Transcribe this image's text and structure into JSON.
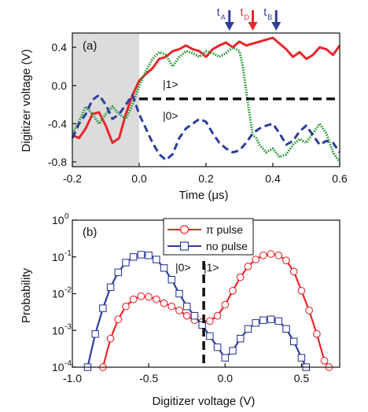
{
  "colors": {
    "red": "#e8262b",
    "blue": "#2e3e9a",
    "green": "#2e9a3a",
    "shade": "#dcdcdc",
    "black": "#111111"
  },
  "chart_data": [
    {
      "type": "line",
      "panel_label": "(a)",
      "xlabel": "Time (μs)",
      "ylabel": "Digitizer voltage (V)",
      "xlim": [
        -0.2,
        0.6
      ],
      "ylim": [
        -0.85,
        0.55
      ],
      "xticks": [
        -0.2,
        0.0,
        0.2,
        0.4,
        0.6
      ],
      "xticklabels": [
        "-0.2",
        "0.0",
        "0.2",
        "0.4",
        "0.6"
      ],
      "yticks": [
        -0.8,
        -0.4,
        0.0,
        0.4
      ],
      "yticklabels": [
        "-0.8",
        "-0.4",
        "0.0",
        "0.4"
      ],
      "shaded_region": [
        -0.2,
        0.0
      ],
      "threshold": -0.14,
      "state_labels": {
        "upper": "|1>",
        "lower": "|0>"
      },
      "markers": [
        {
          "label": "t",
          "sub": "A",
          "x": 0.27,
          "color": "blue"
        },
        {
          "label": "t",
          "sub": "D",
          "x": 0.34,
          "color": "red"
        },
        {
          "label": "t",
          "sub": "B",
          "x": 0.41,
          "color": "blue"
        }
      ],
      "series": [
        {
          "style": "solid",
          "color": "red",
          "x": [
            -0.2,
            -0.18,
            -0.16,
            -0.14,
            -0.12,
            -0.1,
            -0.08,
            -0.06,
            -0.04,
            -0.02,
            0.0,
            0.02,
            0.04,
            0.06,
            0.08,
            0.1,
            0.12,
            0.14,
            0.16,
            0.18,
            0.2,
            0.22,
            0.24,
            0.26,
            0.28,
            0.3,
            0.32,
            0.34,
            0.36,
            0.38,
            0.4,
            0.42,
            0.44,
            0.46,
            0.48,
            0.5,
            0.52,
            0.54,
            0.56,
            0.58,
            0.6
          ],
          "y": [
            -0.52,
            -0.55,
            -0.45,
            -0.3,
            -0.28,
            -0.42,
            -0.6,
            -0.55,
            -0.3,
            -0.1,
            0.05,
            0.12,
            0.18,
            0.28,
            0.3,
            0.36,
            0.38,
            0.42,
            0.38,
            0.36,
            0.3,
            0.38,
            0.42,
            0.45,
            0.4,
            0.46,
            0.42,
            0.44,
            0.46,
            0.48,
            0.5,
            0.44,
            0.38,
            0.3,
            0.35,
            0.28,
            0.32,
            0.4,
            0.38,
            0.32,
            0.42
          ]
        },
        {
          "style": "dotted",
          "color": "green",
          "x": [
            -0.2,
            -0.18,
            -0.16,
            -0.14,
            -0.12,
            -0.1,
            -0.08,
            -0.06,
            -0.04,
            -0.02,
            0.0,
            0.02,
            0.04,
            0.06,
            0.08,
            0.1,
            0.12,
            0.14,
            0.16,
            0.18,
            0.2,
            0.22,
            0.24,
            0.26,
            0.28,
            0.3,
            0.31,
            0.32,
            0.33,
            0.34,
            0.35,
            0.36,
            0.38,
            0.4,
            0.42,
            0.44,
            0.46,
            0.48,
            0.5,
            0.52,
            0.54,
            0.56,
            0.58,
            0.6
          ],
          "y": [
            -0.5,
            -0.38,
            -0.22,
            -0.3,
            -0.4,
            -0.3,
            -0.22,
            -0.3,
            -0.35,
            -0.2,
            0.0,
            0.15,
            0.28,
            0.35,
            0.32,
            0.2,
            0.3,
            0.36,
            0.34,
            0.3,
            0.36,
            0.34,
            0.3,
            0.34,
            0.4,
            0.36,
            0.2,
            -0.05,
            -0.3,
            -0.52,
            -0.55,
            -0.62,
            -0.7,
            -0.66,
            -0.75,
            -0.72,
            -0.62,
            -0.56,
            -0.6,
            -0.5,
            -0.4,
            -0.5,
            -0.7,
            -0.8
          ]
        },
        {
          "style": "dashed",
          "color": "blue",
          "x": [
            -0.2,
            -0.18,
            -0.16,
            -0.14,
            -0.12,
            -0.1,
            -0.08,
            -0.06,
            -0.04,
            -0.02,
            0.0,
            0.02,
            0.04,
            0.06,
            0.08,
            0.1,
            0.12,
            0.14,
            0.16,
            0.18,
            0.2,
            0.22,
            0.24,
            0.26,
            0.28,
            0.3,
            0.32,
            0.34,
            0.36,
            0.38,
            0.4,
            0.42,
            0.44,
            0.46,
            0.48,
            0.5,
            0.52,
            0.54,
            0.56,
            0.58,
            0.6
          ],
          "y": [
            -0.55,
            -0.4,
            -0.3,
            -0.15,
            -0.1,
            -0.2,
            -0.35,
            -0.3,
            -0.2,
            -0.1,
            -0.3,
            -0.45,
            -0.6,
            -0.72,
            -0.78,
            -0.72,
            -0.55,
            -0.45,
            -0.4,
            -0.35,
            -0.38,
            -0.5,
            -0.6,
            -0.66,
            -0.7,
            -0.68,
            -0.6,
            -0.5,
            -0.45,
            -0.42,
            -0.4,
            -0.5,
            -0.62,
            -0.58,
            -0.48,
            -0.42,
            -0.52,
            -0.62,
            -0.58,
            -0.6,
            -0.7
          ]
        }
      ]
    },
    {
      "type": "line",
      "panel_label": "(b)",
      "xlabel": "Digitizer voltage (V)",
      "ylabel": "Probability",
      "yscale": "log",
      "xlim": [
        -1.0,
        0.75
      ],
      "ylim": [
        0.0001,
        1
      ],
      "xticks": [
        -1.0,
        -0.5,
        0.0,
        0.5
      ],
      "xticklabels": [
        "-1.0",
        "-0.5",
        "0.0",
        "0.5"
      ],
      "yticks": [
        0.0001,
        0.001,
        0.01,
        0.1,
        1
      ],
      "yticklabels": [
        [
          "10",
          "-4"
        ],
        [
          "10",
          "-3"
        ],
        [
          "10",
          "-2"
        ],
        [
          "10",
          "-1"
        ],
        [
          "10",
          "0"
        ]
      ],
      "threshold": -0.14,
      "state_labels": {
        "left": "|0>",
        "right": "|1>"
      },
      "legend": {
        "position": "top-center"
      },
      "series": [
        {
          "name": "π pulse",
          "color": "red",
          "marker": "circle",
          "x": [
            -0.8,
            -0.75,
            -0.7,
            -0.65,
            -0.6,
            -0.55,
            -0.5,
            -0.45,
            -0.4,
            -0.35,
            -0.3,
            -0.25,
            -0.2,
            -0.15,
            -0.1,
            -0.05,
            0.0,
            0.05,
            0.1,
            0.15,
            0.2,
            0.25,
            0.3,
            0.35,
            0.4,
            0.45,
            0.5,
            0.55,
            0.6,
            0.65,
            0.68
          ],
          "y": [
            0.0001,
            0.0006,
            0.002,
            0.0045,
            0.007,
            0.0085,
            0.0082,
            0.007,
            0.0055,
            0.0045,
            0.0035,
            0.0025,
            0.0019,
            0.0017,
            0.0018,
            0.0025,
            0.005,
            0.012,
            0.028,
            0.055,
            0.085,
            0.11,
            0.12,
            0.11,
            0.08,
            0.04,
            0.012,
            0.0035,
            0.0008,
            0.00015,
            0.0001
          ]
        },
        {
          "name": "no pulse",
          "color": "blue",
          "marker": "square",
          "x": [
            -0.9,
            -0.85,
            -0.8,
            -0.75,
            -0.7,
            -0.65,
            -0.6,
            -0.55,
            -0.5,
            -0.45,
            -0.4,
            -0.35,
            -0.3,
            -0.25,
            -0.2,
            -0.15,
            -0.1,
            -0.05,
            0.0,
            0.05,
            0.1,
            0.15,
            0.2,
            0.25,
            0.3,
            0.35,
            0.4,
            0.45,
            0.5,
            0.53
          ],
          "y": [
            0.0001,
            0.0008,
            0.004,
            0.015,
            0.038,
            0.07,
            0.1,
            0.115,
            0.11,
            0.085,
            0.05,
            0.024,
            0.01,
            0.0045,
            0.0025,
            0.0014,
            0.0007,
            0.00035,
            0.00018,
            0.00028,
            0.0006,
            0.0011,
            0.0016,
            0.0019,
            0.002,
            0.0018,
            0.0011,
            0.0005,
            0.00018,
            0.0001
          ]
        }
      ]
    }
  ]
}
